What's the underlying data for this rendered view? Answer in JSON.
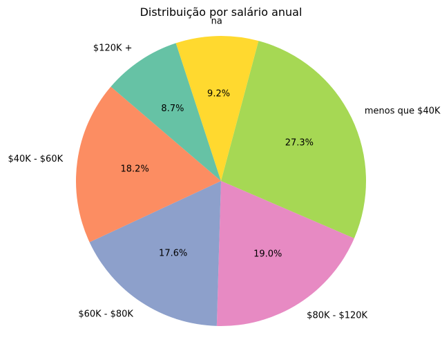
{
  "chart_data": {
    "type": "pie",
    "title": "Distribuição por salário anual",
    "slices": [
      {
        "label": "menos que $40K",
        "value": 27.3,
        "pct_text": "27.3%",
        "color": "#a6d854"
      },
      {
        "label": "$80K - $120K",
        "value": 19.0,
        "pct_text": "19.0%",
        "color": "#e78ac3"
      },
      {
        "label": "$60K - $80K",
        "value": 17.6,
        "pct_text": "17.6%",
        "color": "#8da0cb"
      },
      {
        "label": "$40K - $60K",
        "value": 18.2,
        "pct_text": "18.2%",
        "color": "#fc8d62"
      },
      {
        "label": "$120K +",
        "value": 8.7,
        "pct_text": "8.7%",
        "color": "#66c2a5"
      },
      {
        "label": "na",
        "value": 9.2,
        "pct_text": "9.2%",
        "color": "#ffd92f"
      }
    ]
  }
}
